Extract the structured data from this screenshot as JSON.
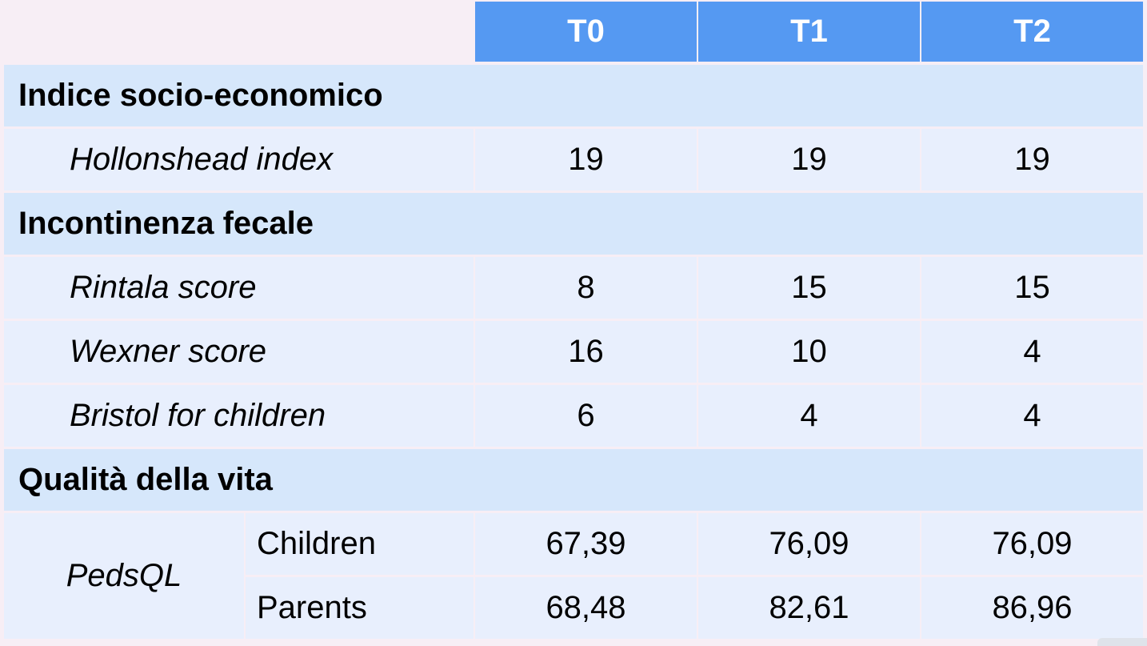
{
  "columns": [
    "T0",
    "T1",
    "T2"
  ],
  "sections": [
    {
      "title": "Indice socio-economico",
      "rows": [
        {
          "label": "Hollonshead index",
          "values": [
            "19",
            "19",
            "19"
          ]
        }
      ]
    },
    {
      "title": "Incontinenza fecale",
      "rows": [
        {
          "label": "Rintala score",
          "values": [
            "8",
            "15",
            "15"
          ]
        },
        {
          "label": "Wexner score",
          "values": [
            "16",
            "10",
            "4"
          ]
        },
        {
          "label": "Bristol for children",
          "values": [
            "6",
            "4",
            "4"
          ]
        }
      ]
    },
    {
      "title": "Qualità della vita",
      "group_label": "PedsQL",
      "rows": [
        {
          "label": "Children",
          "values": [
            "67,39",
            "76,09",
            "76,09"
          ]
        },
        {
          "label": "Parents",
          "values": [
            "68,48",
            "82,61",
            "86,96"
          ]
        }
      ]
    }
  ],
  "colors": {
    "header": "#5599f2",
    "section": "#d6e7fb",
    "row": "#e8effd",
    "background": "#f7eef5"
  }
}
